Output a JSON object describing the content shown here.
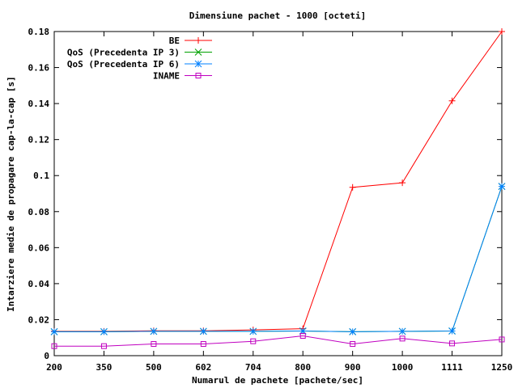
{
  "chart_data": {
    "type": "line",
    "title": "Dimensiune pachet - 1000 [octeti]",
    "xlabel": "Numarul de pachete [pachete/sec]",
    "ylabel": "Intarziere medie de propagare cap-la-cap [s]",
    "categories": [
      "200",
      "350",
      "500",
      "602",
      "704",
      "800",
      "900",
      "1000",
      "1111",
      "1250"
    ],
    "ylim": [
      0,
      0.18
    ],
    "yticks": [
      "0",
      "0.02",
      "0.04",
      "0.06",
      "0.08",
      "0.1",
      "0.12",
      "0.14",
      "0.16",
      "0.18"
    ],
    "grid": false,
    "legend_position": "top-left",
    "series": [
      {
        "name": "BE",
        "color": "#ff0000",
        "marker": "plus",
        "values": [
          0.0135,
          0.0135,
          0.0138,
          0.0138,
          0.0143,
          0.015,
          0.0935,
          0.096,
          0.1415,
          0.18
        ]
      },
      {
        "name": "QoS (Precedenta IP 3)",
        "color": "#00a000",
        "marker": "cross",
        "values": [
          0.0133,
          0.0133,
          0.0135,
          0.0135,
          0.0135,
          0.0137,
          0.0133,
          0.0135,
          0.0137,
          0.094
        ]
      },
      {
        "name": "QoS (Precedenta IP 6)",
        "color": "#0080ff",
        "marker": "star",
        "values": [
          0.0133,
          0.0133,
          0.0135,
          0.0135,
          0.0135,
          0.0137,
          0.0133,
          0.0135,
          0.0137,
          0.094
        ]
      },
      {
        "name": "INAME",
        "color": "#c000c0",
        "marker": "square",
        "values": [
          0.0053,
          0.0053,
          0.0065,
          0.0065,
          0.008,
          0.011,
          0.0065,
          0.0095,
          0.0068,
          0.009
        ]
      }
    ]
  }
}
